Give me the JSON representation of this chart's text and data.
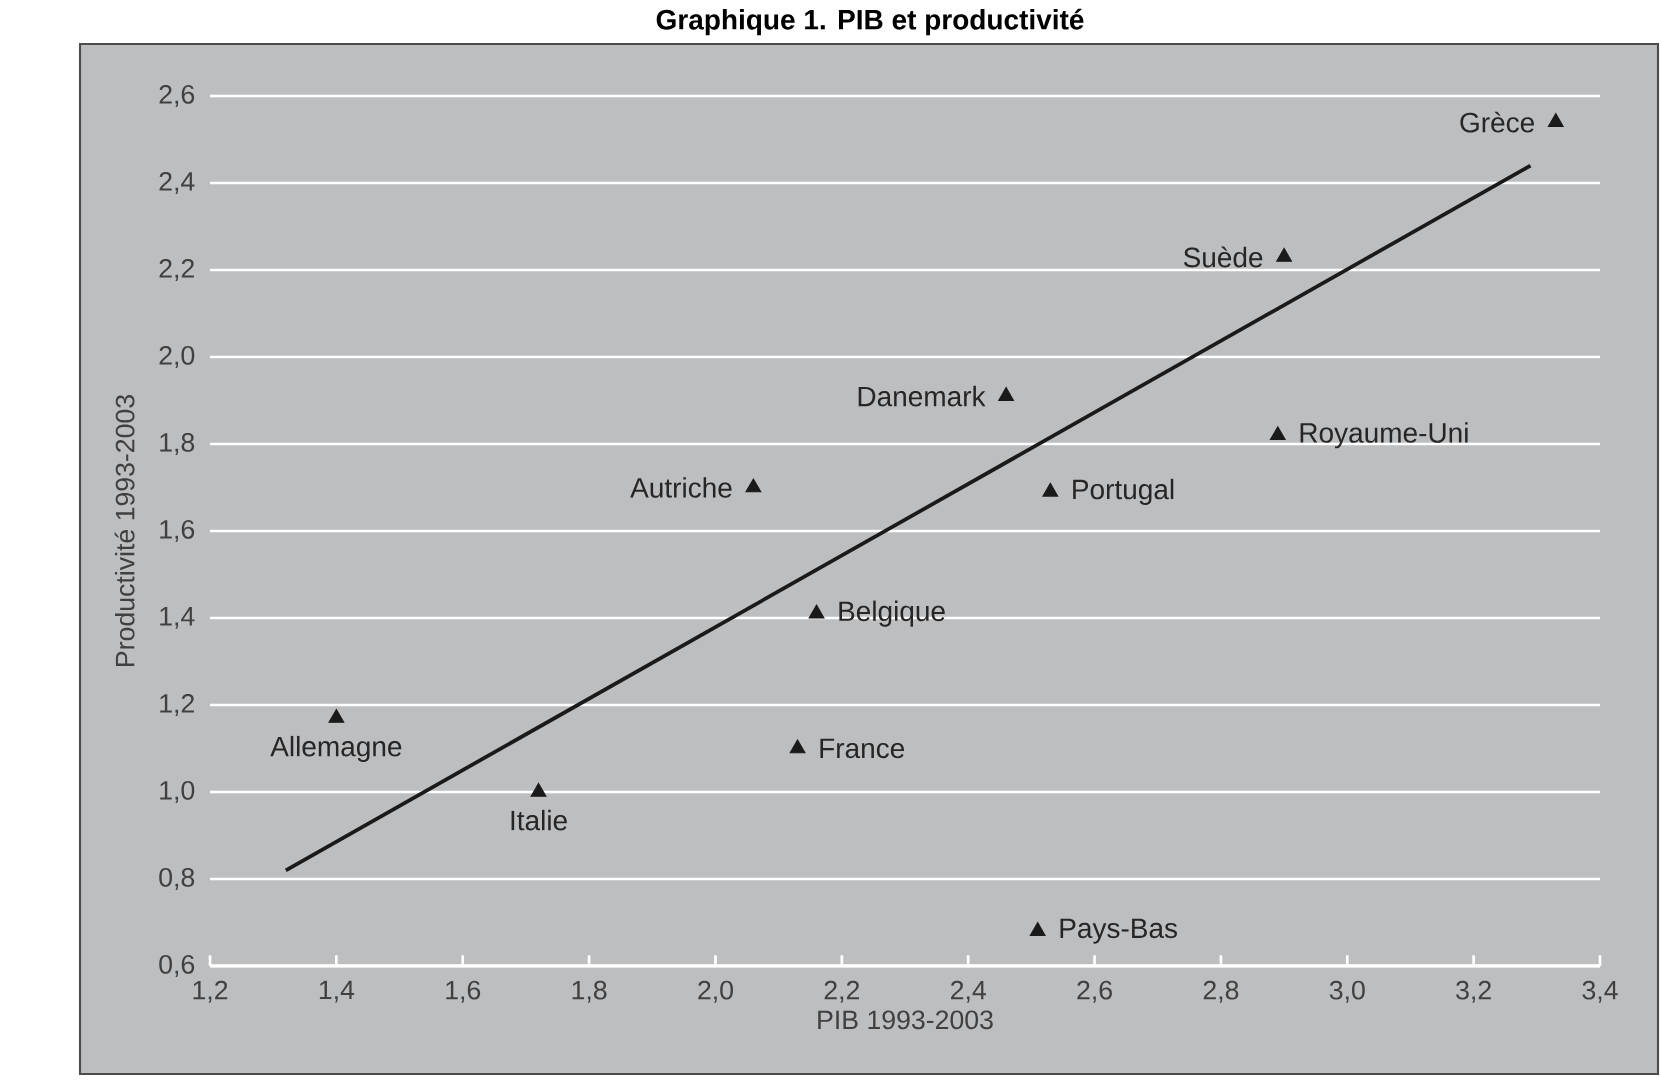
{
  "chart_data": {
    "type": "scatter",
    "title": "Graphique 1. PIB et productivité",
    "xlabel": "PIB 1993-2003",
    "ylabel": "Productivité 1993-2003",
    "xlim": [
      1.2,
      3.4
    ],
    "ylim": [
      0.6,
      2.6
    ],
    "xticks": [
      {
        "value": 1.2,
        "label": "1,2"
      },
      {
        "value": 1.4,
        "label": "1,4"
      },
      {
        "value": 1.6,
        "label": "1,6"
      },
      {
        "value": 1.8,
        "label": "1,8"
      },
      {
        "value": 2.0,
        "label": "2,0"
      },
      {
        "value": 2.2,
        "label": "2,2"
      },
      {
        "value": 2.4,
        "label": "2,4"
      },
      {
        "value": 2.6,
        "label": "2,6"
      },
      {
        "value": 2.8,
        "label": "2,8"
      },
      {
        "value": 3.0,
        "label": "3,0"
      },
      {
        "value": 3.2,
        "label": "3,2"
      },
      {
        "value": 3.4,
        "label": "3,4"
      }
    ],
    "yticks": [
      {
        "value": 0.6,
        "label": "0,6"
      },
      {
        "value": 0.8,
        "label": "0,8"
      },
      {
        "value": 1.0,
        "label": "1,0"
      },
      {
        "value": 1.2,
        "label": "1,2"
      },
      {
        "value": 1.4,
        "label": "1,4"
      },
      {
        "value": 1.6,
        "label": "1,6"
      },
      {
        "value": 1.8,
        "label": "1,8"
      },
      {
        "value": 2.0,
        "label": "2,0"
      },
      {
        "value": 2.2,
        "label": "2,2"
      },
      {
        "value": 2.4,
        "label": "2,4"
      },
      {
        "value": 2.6,
        "label": "2,6"
      }
    ],
    "grid": "y",
    "series": [
      {
        "color": "#1a1a1a",
        "marker": "triangle",
        "x": [
          3.33,
          2.9,
          2.46,
          2.89,
          2.53,
          2.06,
          2.16,
          1.4,
          2.13,
          1.72,
          2.51
        ],
        "values": [
          2.54,
          2.23,
          1.91,
          1.82,
          1.69,
          1.7,
          1.41,
          1.17,
          1.1,
          1.0,
          0.68
        ]
      },
      {
        "type": "line",
        "marker": "none",
        "color": "#1a1a1a",
        "x": [
          1.32,
          3.29
        ],
        "values": [
          0.82,
          2.44
        ]
      }
    ],
    "annotations": [
      {
        "text": "Grèce",
        "x": 3.33,
        "y": 2.54
      },
      {
        "text": "Suède",
        "x": 2.9,
        "y": 2.23
      },
      {
        "text": "Danemark",
        "x": 2.46,
        "y": 1.91
      },
      {
        "text": "Royaume-Uni",
        "x": 2.89,
        "y": 1.82
      },
      {
        "text": "Portugal",
        "x": 2.53,
        "y": 1.69
      },
      {
        "text": "Autriche",
        "x": 2.06,
        "y": 1.7
      },
      {
        "text": "Belgique",
        "x": 2.16,
        "y": 1.41
      },
      {
        "text": "Allemagne",
        "x": 1.4,
        "y": 1.17
      },
      {
        "text": "France",
        "x": 2.13,
        "y": 1.1
      },
      {
        "text": "Italie",
        "x": 1.72,
        "y": 1.0
      },
      {
        "text": "Pays-Bas",
        "x": 2.51,
        "y": 0.68
      }
    ]
  }
}
